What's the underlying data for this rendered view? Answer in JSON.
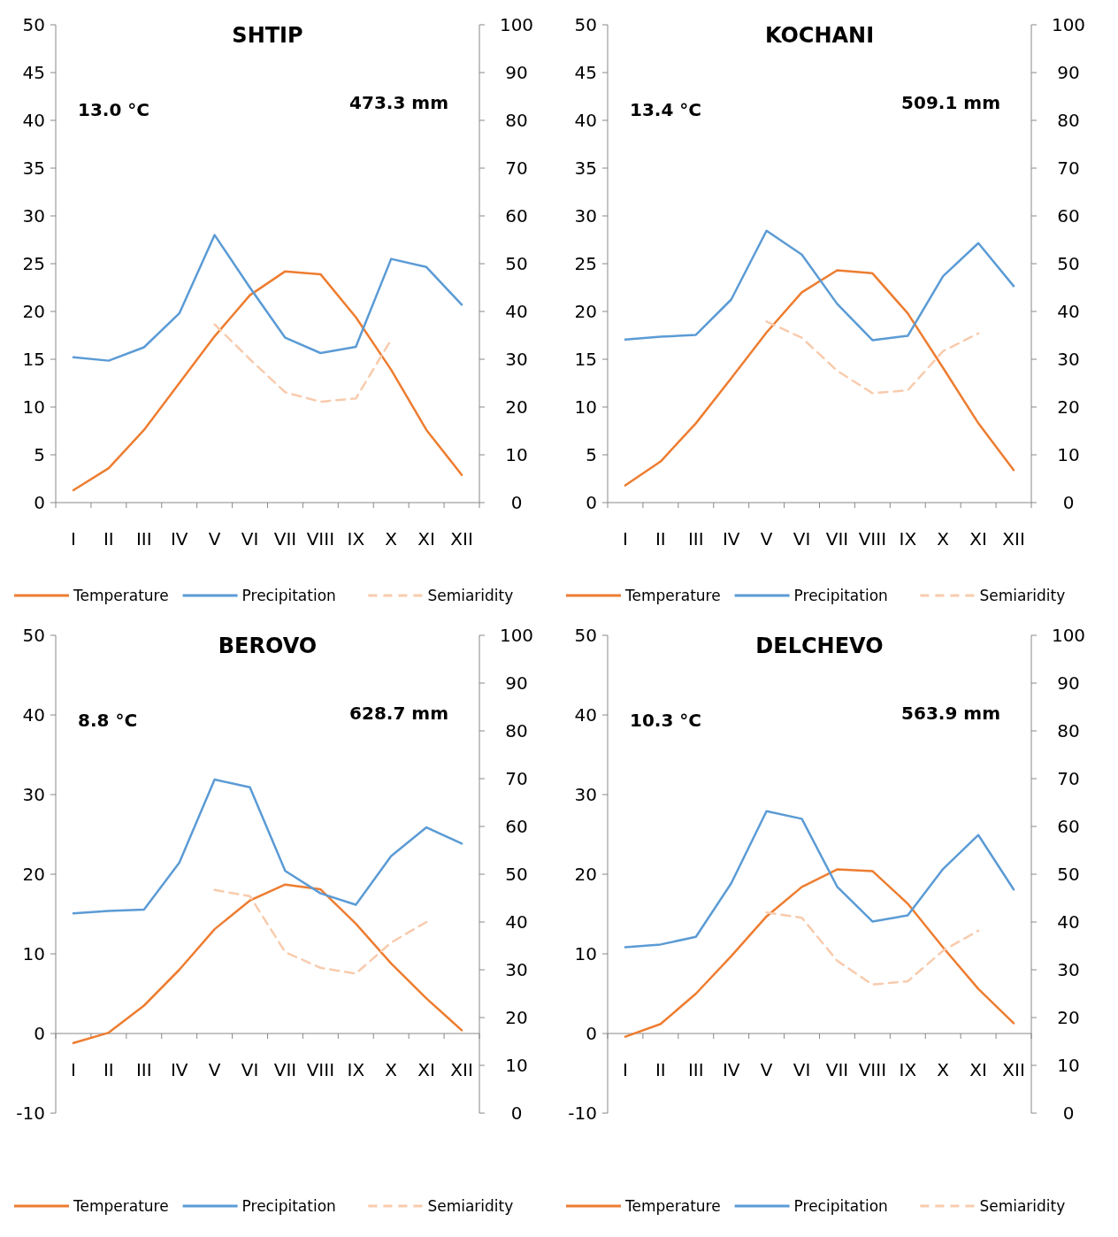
{
  "chart_data": [
    {
      "type": "line",
      "title": "SHTIP",
      "categories": [
        "I",
        "II",
        "III",
        "IV",
        "V",
        "VI",
        "VII",
        "VIII",
        "IX",
        "X",
        "XI",
        "XII"
      ],
      "annotations": [
        "13.0 °C",
        "473.3 mm"
      ],
      "legend": "bottom",
      "grid": false,
      "ylim": [
        0,
        50
      ],
      "yticks": [
        0,
        5,
        10,
        15,
        20,
        25,
        30,
        35,
        40,
        45,
        50
      ],
      "y2lim": [
        0,
        100
      ],
      "y2ticks": [
        0,
        10,
        20,
        30,
        40,
        50,
        60,
        70,
        80,
        90,
        100
      ],
      "series": [
        {
          "name": "Temperature",
          "color": "#ed7d31",
          "values": [
            1.3,
            3.6,
            7.6,
            12.5,
            17.4,
            21.7,
            24.2,
            23.9,
            19.4,
            13.9,
            7.6,
            2.9
          ]
        },
        {
          "name": "Precipitation",
          "color": "#5b9bd5",
          "axis": "y2",
          "values": [
            30.4,
            29.7,
            32.5,
            39.6,
            56,
            45,
            34.5,
            31.3,
            32.6,
            51,
            49.3,
            41.4
          ]
        },
        {
          "name": "Semiaridity",
          "color": "#f8cbad",
          "axis": "y2",
          "line_style": "dashed",
          "values": [
            null,
            null,
            null,
            null,
            37.3,
            30,
            23.1,
            21.1,
            21.8,
            34.1,
            null,
            null
          ]
        }
      ]
    },
    {
      "type": "line",
      "title": "KOCHANI",
      "categories": [
        "I",
        "II",
        "III",
        "IV",
        "V",
        "VI",
        "VII",
        "VIII",
        "IX",
        "X",
        "XI",
        "XII"
      ],
      "annotations": [
        "13.4 °C",
        "509.1 mm"
      ],
      "legend": "bottom",
      "grid": false,
      "ylim": [
        0,
        50
      ],
      "yticks": [
        0,
        5,
        10,
        15,
        20,
        25,
        30,
        35,
        40,
        45,
        50
      ],
      "y2lim": [
        0,
        100
      ],
      "y2ticks": [
        0,
        10,
        20,
        30,
        40,
        50,
        60,
        70,
        80,
        90,
        100
      ],
      "series": [
        {
          "name": "Temperature",
          "color": "#ed7d31",
          "values": [
            1.8,
            4.3,
            8.3,
            13,
            17.8,
            22,
            24.3,
            24,
            19.8,
            14.1,
            8.3,
            3.4
          ]
        },
        {
          "name": "Precipitation",
          "color": "#5b9bd5",
          "axis": "y2",
          "values": [
            34.1,
            34.7,
            35.1,
            42.5,
            56.9,
            51.9,
            41.6,
            34,
            34.9,
            47.4,
            54.3,
            45.3
          ]
        },
        {
          "name": "Semiaridity",
          "color": "#f8cbad",
          "axis": "y2",
          "line_style": "dashed",
          "values": [
            null,
            null,
            null,
            null,
            37.9,
            34.5,
            27.6,
            22.9,
            23.5,
            31.7,
            35.4,
            null
          ]
        }
      ]
    },
    {
      "type": "line",
      "title": "BEROVO",
      "categories": [
        "I",
        "II",
        "III",
        "IV",
        "V",
        "VI",
        "VII",
        "VIII",
        "IX",
        "X",
        "XI",
        "XII"
      ],
      "annotations": [
        "8.8 °C",
        "628.7 mm"
      ],
      "legend": "bottom",
      "grid": false,
      "ylim": [
        -10,
        50
      ],
      "yticks": [
        -10,
        0,
        10,
        20,
        30,
        40,
        50
      ],
      "y2lim": [
        0,
        100
      ],
      "y2ticks": [
        0,
        10,
        20,
        30,
        40,
        50,
        60,
        70,
        80,
        90,
        100
      ],
      "series": [
        {
          "name": "Temperature",
          "color": "#ed7d31",
          "values": [
            -1.2,
            0.1,
            3.5,
            8,
            13.1,
            16.7,
            18.7,
            18.1,
            13.8,
            8.8,
            4.4,
            0.4
          ]
        },
        {
          "name": "Precipitation",
          "color": "#5b9bd5",
          "axis": "y2",
          "values": [
            41.8,
            42.3,
            42.6,
            52.4,
            69.8,
            68.2,
            50.7,
            46,
            43.6,
            53.8,
            59.8,
            56.4
          ]
        },
        {
          "name": "Semiaridity",
          "color": "#f8cbad",
          "axis": "y2",
          "line_style": "dashed",
          "values": [
            null,
            null,
            null,
            null,
            46.7,
            45.4,
            33.7,
            30.4,
            29.2,
            35.7,
            40,
            null
          ]
        }
      ]
    },
    {
      "type": "line",
      "title": "DELCHEVO",
      "categories": [
        "I",
        "II",
        "III",
        "IV",
        "V",
        "VI",
        "VII",
        "VIII",
        "IX",
        "X",
        "XI",
        "XII"
      ],
      "annotations": [
        "10.3 °C",
        "563.9 mm"
      ],
      "legend": "bottom",
      "grid": false,
      "ylim": [
        -10,
        50
      ],
      "yticks": [
        -10,
        0,
        10,
        20,
        30,
        40,
        50
      ],
      "y2lim": [
        0,
        100
      ],
      "y2ticks": [
        0,
        10,
        20,
        30,
        40,
        50,
        60,
        70,
        80,
        90,
        100
      ],
      "series": [
        {
          "name": "Temperature",
          "color": "#ed7d31",
          "values": [
            -0.4,
            1.2,
            5,
            9.7,
            14.7,
            18.4,
            20.6,
            20.4,
            16.3,
            10.8,
            5.6,
            1.3
          ]
        },
        {
          "name": "Precipitation",
          "color": "#5b9bd5",
          "axis": "y2",
          "values": [
            34.7,
            35.3,
            36.9,
            48.1,
            63.2,
            61.6,
            47.4,
            40.1,
            41.4,
            51.1,
            58.2,
            46.8
          ]
        },
        {
          "name": "Semiaridity",
          "color": "#f8cbad",
          "axis": "y2",
          "line_style": "dashed",
          "values": [
            null,
            null,
            null,
            null,
            42,
            40.9,
            31.9,
            26.9,
            27.6,
            34,
            38.2,
            null
          ]
        }
      ]
    }
  ]
}
